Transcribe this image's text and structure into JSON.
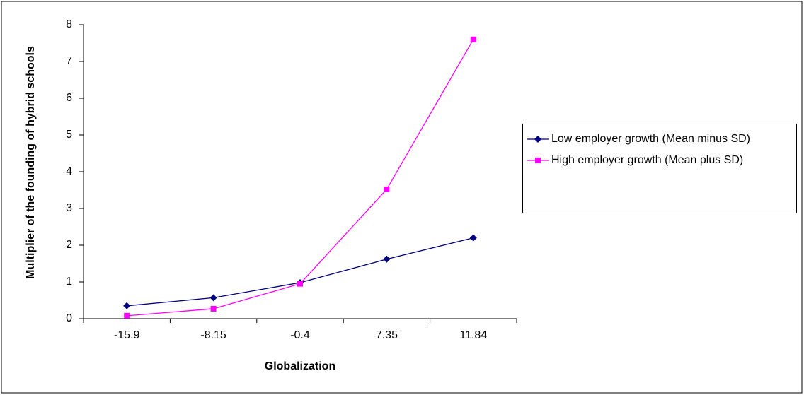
{
  "chart_data": {
    "type": "line",
    "x_label": "Globalization",
    "y_label": "Multiplier of the founding of hybrid schools",
    "categories": [
      "-15.9",
      "-8.15",
      "-0.4",
      "7.35",
      "11.84"
    ],
    "series": [
      {
        "name": "Low employer growth (Mean minus SD)",
        "color": "#000080",
        "marker": "diamond",
        "values": [
          0.35,
          0.57,
          0.98,
          1.62,
          2.2
        ]
      },
      {
        "name": "High employer growth (Mean plus SD)",
        "color": "#ff00ff",
        "marker": "square",
        "values": [
          0.08,
          0.27,
          0.95,
          3.52,
          7.6
        ]
      }
    ],
    "ylim": [
      0,
      8
    ],
    "yticks": [
      0,
      1,
      2,
      3,
      4,
      5,
      6,
      7,
      8
    ],
    "grid": false,
    "legend": "right"
  }
}
